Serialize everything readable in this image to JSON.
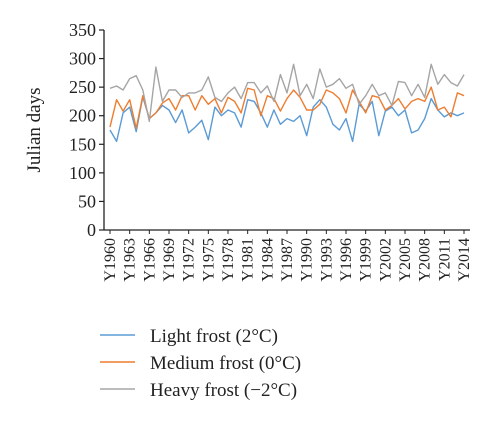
{
  "chart_data": {
    "type": "line",
    "title": "",
    "xlabel": "",
    "ylabel": "Julian days",
    "ylim": [
      0,
      350
    ],
    "yticks": [
      0,
      50,
      100,
      150,
      200,
      250,
      300,
      350
    ],
    "xtick_labels": [
      "Y1960",
      "Y1963",
      "Y1966",
      "Y1969",
      "Y1972",
      "Y1975",
      "Y1978",
      "Y1981",
      "Y1984",
      "Y1987",
      "Y1990",
      "Y1993",
      "Y1996",
      "Y1999",
      "Y2002",
      "Y2005",
      "Y2008",
      "Y2011",
      "Y2014"
    ],
    "x": [
      1960,
      1961,
      1962,
      1963,
      1964,
      1965,
      1966,
      1967,
      1968,
      1969,
      1970,
      1971,
      1972,
      1973,
      1974,
      1975,
      1976,
      1977,
      1978,
      1979,
      1980,
      1981,
      1982,
      1983,
      1984,
      1985,
      1986,
      1987,
      1988,
      1989,
      1990,
      1991,
      1992,
      1993,
      1994,
      1995,
      1996,
      1997,
      1998,
      1999,
      2000,
      2001,
      2002,
      2003,
      2004,
      2005,
      2006,
      2007,
      2008,
      2009,
      2010,
      2011,
      2012,
      2013,
      2014
    ],
    "grid": false,
    "legend_position": "bottom",
    "series": [
      {
        "name": "Light frost (2°C)",
        "color": "#5b9bd5",
        "values": [
          175,
          155,
          205,
          215,
          172,
          233,
          195,
          205,
          218,
          210,
          188,
          210,
          170,
          180,
          192,
          158,
          215,
          200,
          210,
          205,
          180,
          228,
          225,
          205,
          180,
          210,
          185,
          195,
          190,
          200,
          165,
          215,
          228,
          215,
          185,
          175,
          195,
          155,
          220,
          208,
          225,
          165,
          208,
          215,
          200,
          210,
          170,
          175,
          195,
          230,
          210,
          198,
          205,
          200,
          205
        ]
      },
      {
        "name": "Medium frost (0°C)",
        "color": "#ed7d31",
        "values": [
          180,
          228,
          208,
          228,
          178,
          235,
          195,
          205,
          222,
          230,
          210,
          235,
          235,
          210,
          235,
          220,
          230,
          205,
          232,
          225,
          205,
          248,
          245,
          200,
          235,
          230,
          208,
          230,
          245,
          232,
          210,
          210,
          220,
          245,
          240,
          230,
          205,
          245,
          225,
          205,
          235,
          232,
          210,
          218,
          230,
          212,
          225,
          230,
          225,
          250,
          210,
          215,
          198,
          240,
          235
        ]
      },
      {
        "name": "Heavy frost (−2°C)",
        "color": "#a5a5a5",
        "values": [
          248,
          252,
          245,
          265,
          270,
          245,
          190,
          285,
          225,
          245,
          245,
          232,
          240,
          240,
          245,
          268,
          232,
          225,
          240,
          250,
          230,
          258,
          258,
          240,
          252,
          225,
          272,
          240,
          290,
          235,
          255,
          230,
          282,
          250,
          255,
          265,
          248,
          255,
          220,
          235,
          255,
          235,
          240,
          218,
          260,
          258,
          235,
          255,
          232,
          290,
          255,
          272,
          258,
          252,
          272
        ]
      }
    ]
  }
}
